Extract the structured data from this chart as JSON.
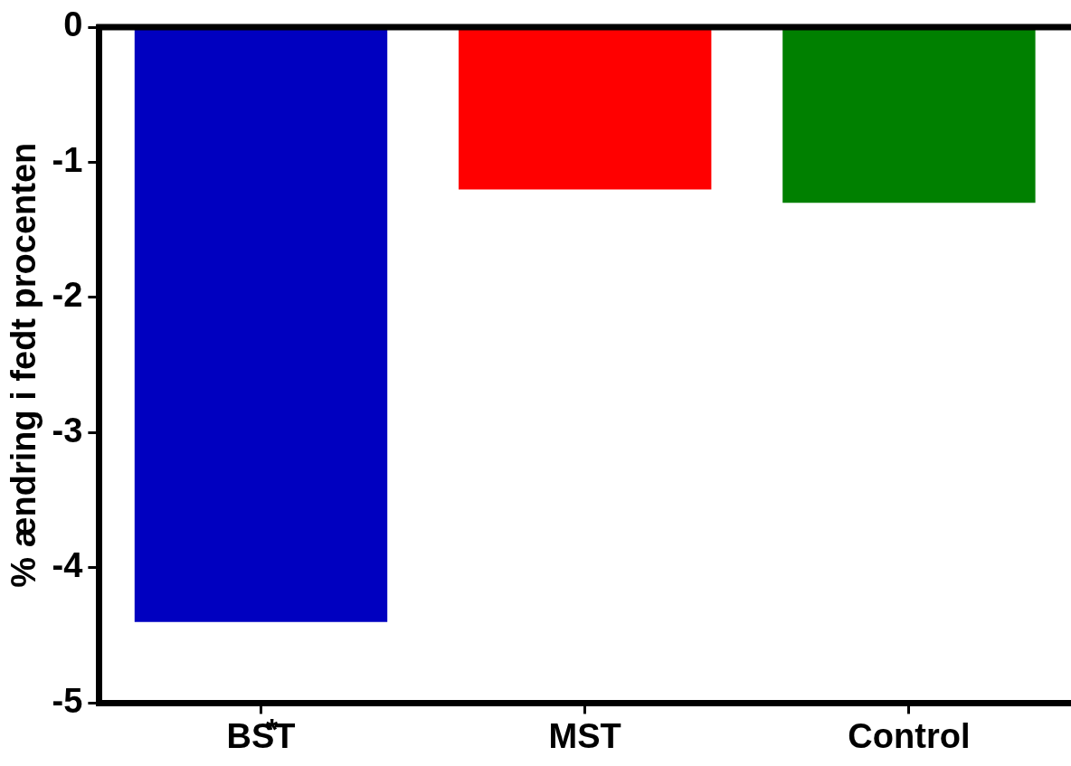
{
  "chart_data": {
    "type": "bar",
    "ylabel": "% ændring i fedt procenten",
    "categories": [
      "BST",
      "MST",
      "Control"
    ],
    "values": [
      -4.4,
      -1.2,
      -1.3
    ],
    "colors": [
      "#0000c0",
      "#ff0000",
      "#008000"
    ],
    "ylim": [
      -5,
      0
    ],
    "yticks": [
      -5,
      -4,
      -3,
      -2,
      -1,
      0
    ],
    "grid": false,
    "legend": false,
    "annotations": [
      "*"
    ]
  }
}
